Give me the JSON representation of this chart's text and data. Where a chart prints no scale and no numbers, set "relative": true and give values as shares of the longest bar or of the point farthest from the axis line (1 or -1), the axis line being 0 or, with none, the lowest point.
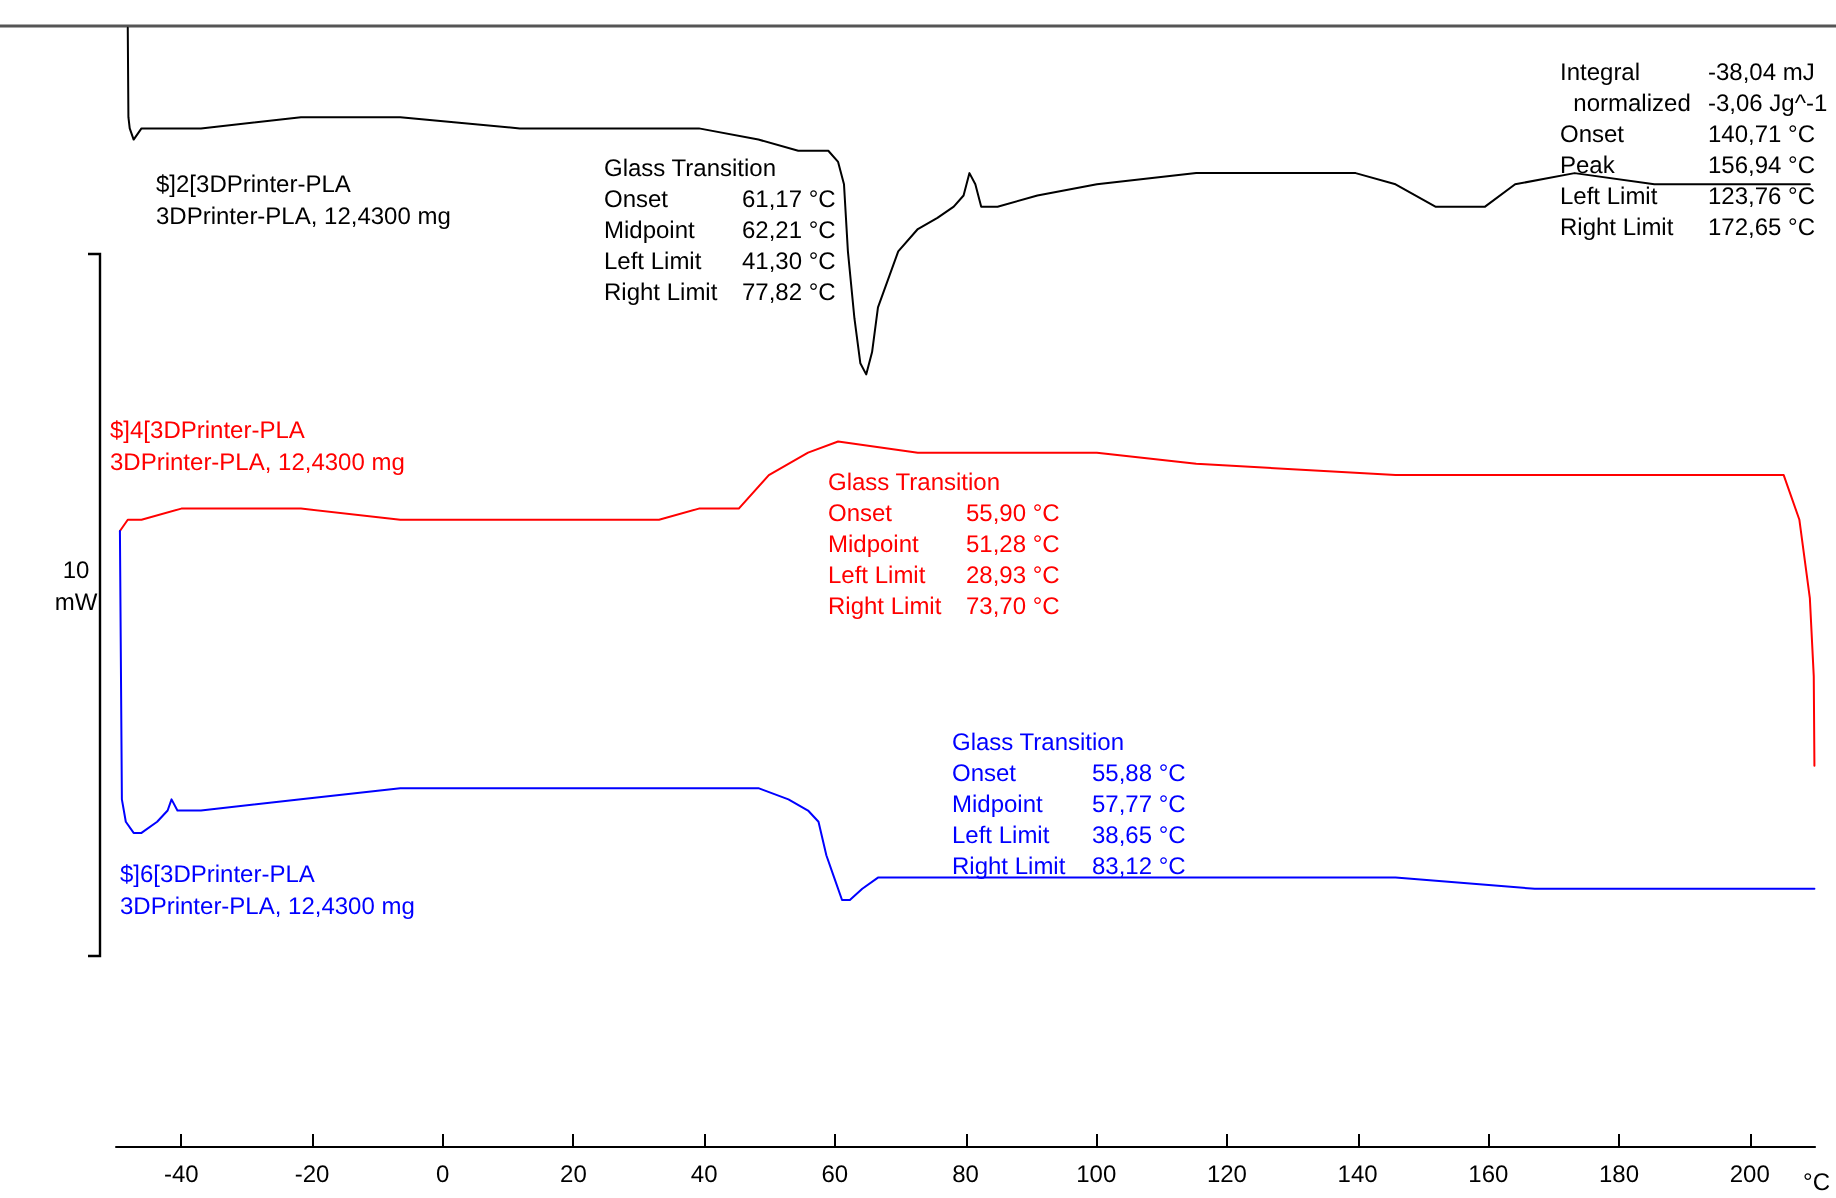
{
  "chart_data": {
    "type": "line",
    "relative": true,
    "xlabel": "°C",
    "legend": false,
    "grid": false,
    "marker": "none",
    "line_style": "solid",
    "xlim": [
      -50,
      210
    ],
    "xticks": [
      -40,
      -20,
      0,
      20,
      40,
      60,
      80,
      100,
      120,
      140,
      160,
      180,
      200
    ],
    "series": [
      {
        "name": "$]2[3DPrinter-PLA",
        "color": "#000000",
        "x": [
          -48.2,
          -48.1,
          -47.9,
          -47.3,
          -46.1,
          -37.0,
          -21.7,
          -6.5,
          11.8,
          24.0,
          39.2,
          48.3,
          54.4,
          59.0,
          60.5,
          61.4,
          62.0,
          63.0,
          63.9,
          64.8,
          65.7,
          66.6,
          69.7,
          72.7,
          75.7,
          78.2,
          79.7,
          80.6,
          81.5,
          82.4,
          84.9,
          91.0,
          100.1,
          115.3,
          124.5,
          133.6,
          139.7,
          145.8,
          151.9,
          156.5,
          159.5,
          164.1,
          173.2,
          185.4,
          197.6,
          209.2
        ],
        "values": [
          1.0,
          0.92,
          0.91,
          0.9,
          0.91,
          0.91,
          0.92,
          0.92,
          0.91,
          0.91,
          0.91,
          0.9,
          0.89,
          0.89,
          0.88,
          0.86,
          0.8,
          0.74,
          0.7,
          0.69,
          0.71,
          0.75,
          0.8,
          0.82,
          0.83,
          0.84,
          0.85,
          0.87,
          0.86,
          0.84,
          0.84,
          0.85,
          0.86,
          0.87,
          0.87,
          0.87,
          0.87,
          0.86,
          0.84,
          0.84,
          0.84,
          0.86,
          0.87,
          0.86,
          0.86,
          0.86
        ]
      },
      {
        "name": "$]4[3DPrinter-PLA",
        "color": "#ff0000",
        "x": [
          -49.4,
          -48.2,
          -46.1,
          -40.0,
          -21.7,
          -6.5,
          8.7,
          24.0,
          33.1,
          39.2,
          45.3,
          49.9,
          52.9,
          55.9,
          60.5,
          72.7,
          84.9,
          100.1,
          115.3,
          145.8,
          176.3,
          200.6,
          205.2,
          207.6,
          209.2,
          209.8,
          209.9
        ],
        "values": [
          0.55,
          0.56,
          0.56,
          0.57,
          0.57,
          0.56,
          0.56,
          0.56,
          0.56,
          0.57,
          0.57,
          0.6,
          0.61,
          0.62,
          0.63,
          0.62,
          0.62,
          0.62,
          0.61,
          0.6,
          0.6,
          0.6,
          0.6,
          0.56,
          0.49,
          0.42,
          0.34
        ]
      },
      {
        "name": "$]6[3DPrinter-PLA",
        "color": "#0000ff",
        "x": [
          -49.4,
          -49.1,
          -48.5,
          -47.3,
          -46.1,
          -43.7,
          -42.1,
          -41.5,
          -40.6,
          -37.0,
          -21.7,
          -6.5,
          8.7,
          24.0,
          39.2,
          48.3,
          52.9,
          55.9,
          57.5,
          58.7,
          59.9,
          61.1,
          62.3,
          64.2,
          66.6,
          75.7,
          100.1,
          121.4,
          145.8,
          167.1,
          185.4,
          197.6,
          209.9
        ],
        "values": [
          0.55,
          0.31,
          0.29,
          0.28,
          0.28,
          0.29,
          0.3,
          0.31,
          0.3,
          0.3,
          0.31,
          0.32,
          0.32,
          0.32,
          0.32,
          0.32,
          0.31,
          0.3,
          0.29,
          0.26,
          0.24,
          0.22,
          0.22,
          0.23,
          0.24,
          0.24,
          0.24,
          0.24,
          0.24,
          0.23,
          0.23,
          0.23,
          0.23
        ]
      }
    ],
    "annotations": [
      "3DPrinter-PLA, 12,4300 mg",
      "3DPrinter-PLA, 12,4300 mg",
      "3DPrinter-PLA, 12,4300 mg",
      "Glass Transition\nOnset\t61,17 °C\nMidpoint\t62,21 °C\nLeft Limit\t41,30 °C\nRight Limit\t77,82 °C",
      "Integral\t-38,04 mJ\n  normalized\t-3,06 Jg^-1\nOnset\t140,71 °C\nPeak\t156,94 °C\nLeft Limit\t123,76 °C\nRight Limit\t172,65 °C",
      "Glass Transition\nOnset\t55,90 °C\nMidpoint\t51,28 °C\nLeft Limit\t28,93 °C\nRight Limit\t73,70 °C",
      "Glass Transition\nOnset\t55,88 °C\nMidpoint\t57,77 °C\nLeft Limit\t38,65 °C\nRight Limit\t83,12 °C",
      "10",
      "mW"
    ]
  }
}
